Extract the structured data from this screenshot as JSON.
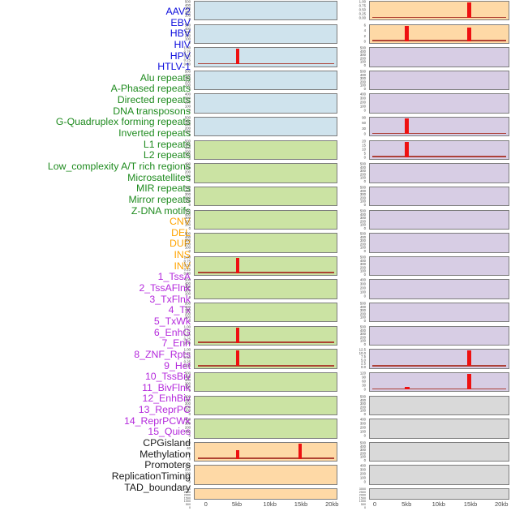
{
  "chart_data": {
    "type": "area",
    "title": "",
    "layout_note": "44 genomic feature tracks: 2 columns x 22 panels, shared x-axis 0-20kb, red spikes mark signal peaks",
    "x_axis": {
      "ticks": [
        "0",
        "5kb",
        "10kb",
        "15kb",
        "20kb"
      ],
      "range_kb": [
        0,
        20
      ]
    },
    "group_colors": {
      "virus": "#0d0ddd",
      "repeat": "#1f8b1f",
      "sv": "#ffa400",
      "chromatin": "#b429dc",
      "other": "#1a1a1a"
    },
    "panel_fill_colors": {
      "blue": "#cfe3ed",
      "green": "#cbe3a3",
      "orange": "#fed9a6",
      "purple": "#d7cde4",
      "gray": "#d9d9d9"
    },
    "spike_color": "#ee1111",
    "baseline_color": "#a93226",
    "row_labels": [
      {
        "text": "AAV2",
        "group": "virus"
      },
      {
        "text": "EBV",
        "group": "virus"
      },
      {
        "text": "HBV",
        "group": "virus"
      },
      {
        "text": "HIV",
        "group": "virus"
      },
      {
        "text": "HPV",
        "group": "virus"
      },
      {
        "text": "HTLV-1",
        "group": "virus"
      },
      {
        "text": "Alu repeats",
        "group": "repeat"
      },
      {
        "text": "A-Phased repeats",
        "group": "repeat"
      },
      {
        "text": "Directed repeats",
        "group": "repeat"
      },
      {
        "text": "DNA transposons",
        "group": "repeat"
      },
      {
        "text": "G-Quadruplex forming repeats",
        "group": "repeat"
      },
      {
        "text": "Inverted repeats",
        "group": "repeat"
      },
      {
        "text": "L1 repeats",
        "group": "repeat"
      },
      {
        "text": "L2 repeats",
        "group": "repeat"
      },
      {
        "text": "Low_complexity A/T rich regions",
        "group": "repeat"
      },
      {
        "text": "Microsatellites",
        "group": "repeat"
      },
      {
        "text": "MIR repeats",
        "group": "repeat"
      },
      {
        "text": "Mirror repeats",
        "group": "repeat"
      },
      {
        "text": "Z-DNA motifs",
        "group": "repeat"
      },
      {
        "text": "CNV",
        "group": "sv"
      },
      {
        "text": "DEL",
        "group": "sv"
      },
      {
        "text": "DUP",
        "group": "sv"
      },
      {
        "text": "INS",
        "group": "sv"
      },
      {
        "text": "INV",
        "group": "sv"
      },
      {
        "text": "1_TssA",
        "group": "chromatin"
      },
      {
        "text": "2_TssAFlnk",
        "group": "chromatin"
      },
      {
        "text": "3_TxFlnk",
        "group": "chromatin"
      },
      {
        "text": "4_Tx",
        "group": "chromatin"
      },
      {
        "text": "5_TxWk",
        "group": "chromatin"
      },
      {
        "text": "6_EnhG",
        "group": "chromatin"
      },
      {
        "text": "7_Enh",
        "group": "chromatin"
      },
      {
        "text": "8_ZNF_Rpts",
        "group": "chromatin"
      },
      {
        "text": "9_Het",
        "group": "chromatin"
      },
      {
        "text": "10_TssBiv",
        "group": "chromatin"
      },
      {
        "text": "11_BivFlnk",
        "group": "chromatin"
      },
      {
        "text": "12_EnhBiv",
        "group": "chromatin"
      },
      {
        "text": "13_ReprPC",
        "group": "chromatin"
      },
      {
        "text": "14_ReprPCWk",
        "group": "chromatin"
      },
      {
        "text": "15_Quies",
        "group": "chromatin"
      },
      {
        "text": "CPGisland",
        "group": "other"
      },
      {
        "text": "Methylation",
        "group": "other"
      },
      {
        "text": "Promoters",
        "group": "other"
      },
      {
        "text": "ReplicationTiming",
        "group": "other"
      },
      {
        "text": "TAD_boundary",
        "group": "other"
      }
    ],
    "left_panels": [
      {
        "fill": "blue",
        "yticks": [
          "500",
          "400",
          "300",
          "200",
          "100",
          "0"
        ],
        "spikes": [],
        "baseline": false
      },
      {
        "fill": "blue",
        "yticks": [
          "500",
          "400",
          "300",
          "200",
          "100",
          "0"
        ],
        "spikes": [],
        "baseline": false
      },
      {
        "fill": "blue",
        "yticks": [
          "1.00",
          "0.75",
          "0.50",
          "0.25",
          "0.00"
        ],
        "spikes": [
          {
            "kb": 5,
            "h": 1
          }
        ],
        "baseline": true
      },
      {
        "fill": "blue",
        "yticks": [
          "500",
          "400",
          "300",
          "200",
          "100",
          "0"
        ],
        "spikes": [],
        "baseline": false
      },
      {
        "fill": "blue",
        "yticks": [
          "400",
          "300",
          "200",
          "100",
          "0"
        ],
        "spikes": [],
        "baseline": false
      },
      {
        "fill": "blue",
        "yticks": [
          "500",
          "400",
          "300",
          "200",
          "100",
          "0"
        ],
        "spikes": [],
        "baseline": false
      },
      {
        "fill": "green",
        "yticks": [
          "500",
          "400",
          "300",
          "200",
          "100",
          "0"
        ],
        "spikes": [],
        "baseline": false
      },
      {
        "fill": "green",
        "yticks": [
          "400",
          "300",
          "200",
          "100",
          "0"
        ],
        "spikes": [],
        "baseline": false
      },
      {
        "fill": "green",
        "yticks": [
          "500",
          "400",
          "300",
          "200",
          "100",
          "0"
        ],
        "spikes": [],
        "baseline": false
      },
      {
        "fill": "green",
        "yticks": [
          "500",
          "400",
          "300",
          "200",
          "100",
          "0"
        ],
        "spikes": [],
        "baseline": false
      },
      {
        "fill": "green",
        "yticks": [
          "500",
          "400",
          "300",
          "200",
          "100",
          "0"
        ],
        "spikes": [],
        "baseline": false
      },
      {
        "fill": "green",
        "yticks": [
          "1.00",
          "0.75",
          "0.50",
          "0.25",
          "0.00"
        ],
        "spikes": [
          {
            "kb": 5,
            "h": 1
          }
        ],
        "baseline": true
      },
      {
        "fill": "green",
        "yticks": [
          "500",
          "400",
          "300",
          "200",
          "100",
          "0"
        ],
        "spikes": [],
        "baseline": false
      },
      {
        "fill": "green",
        "yticks": [
          "500",
          "400",
          "300",
          "200",
          "100",
          "0"
        ],
        "spikes": [],
        "baseline": false
      },
      {
        "fill": "green",
        "yticks": [
          "1.00",
          "0.75",
          "0.50",
          "0.25",
          "0.00"
        ],
        "spikes": [
          {
            "kb": 5,
            "h": 1
          }
        ],
        "baseline": true
      },
      {
        "fill": "green",
        "yticks": [
          "1.00",
          "0.75",
          "0.50",
          "0.25",
          "0.00"
        ],
        "spikes": [
          {
            "kb": 5,
            "h": 1
          }
        ],
        "baseline": true
      },
      {
        "fill": "green",
        "yticks": [
          "500",
          "400",
          "300",
          "200",
          "100",
          "0"
        ],
        "spikes": [],
        "baseline": false
      },
      {
        "fill": "green",
        "yticks": [
          "500",
          "400",
          "300",
          "200",
          "100",
          "0"
        ],
        "spikes": [],
        "baseline": false
      },
      {
        "fill": "green",
        "yticks": [
          "400",
          "300",
          "200",
          "100",
          "0"
        ],
        "spikes": [],
        "baseline": false
      },
      {
        "fill": "orange",
        "yticks": [
          "60",
          "40",
          "20",
          "0"
        ],
        "spikes": [
          {
            "kb": 5,
            "h": 0.55
          },
          {
            "kb": 15,
            "h": 1
          }
        ],
        "baseline": true
      },
      {
        "fill": "orange",
        "yticks": [
          "400",
          "300",
          "200",
          "100",
          "0"
        ],
        "spikes": [],
        "baseline": false
      },
      {
        "fill": "orange",
        "yticks": [
          "3000",
          "2500",
          "2000",
          "1500",
          "1000",
          "500",
          "0"
        ],
        "dense": true,
        "spikes": [],
        "baseline": false
      }
    ],
    "right_panels": [
      {
        "fill": "orange",
        "yticks": [
          "1.00",
          "0.75",
          "0.50",
          "0.25",
          "0.00"
        ],
        "spikes": [
          {
            "kb": 15,
            "h": 1
          }
        ],
        "baseline": true
      },
      {
        "fill": "orange",
        "yticks": [
          "6",
          "4",
          "2",
          "0"
        ],
        "spikes": [
          {
            "kb": 5,
            "h": 1
          },
          {
            "kb": 15,
            "h": 0.85
          }
        ],
        "baseline": true
      },
      {
        "fill": "purple",
        "yticks": [
          "500",
          "400",
          "300",
          "200",
          "100",
          "0"
        ],
        "spikes": [],
        "baseline": false
      },
      {
        "fill": "purple",
        "yticks": [
          "500",
          "400",
          "300",
          "200",
          "100",
          "0"
        ],
        "spikes": [],
        "baseline": false
      },
      {
        "fill": "purple",
        "yticks": [
          "400",
          "300",
          "200",
          "100",
          "0"
        ],
        "spikes": [],
        "baseline": false
      },
      {
        "fill": "purple",
        "yticks": [
          "90",
          "60",
          "30",
          "0"
        ],
        "spikes": [
          {
            "kb": 5,
            "h": 1
          }
        ],
        "baseline": true
      },
      {
        "fill": "purple",
        "yticks": [
          "20",
          "15",
          "10",
          "5",
          "0"
        ],
        "spikes": [
          {
            "kb": 5,
            "h": 1
          }
        ],
        "baseline": true
      },
      {
        "fill": "purple",
        "yticks": [
          "500",
          "400",
          "300",
          "200",
          "100",
          "0"
        ],
        "spikes": [],
        "baseline": false
      },
      {
        "fill": "purple",
        "yticks": [
          "500",
          "400",
          "300",
          "200",
          "100",
          "0"
        ],
        "spikes": [],
        "baseline": false
      },
      {
        "fill": "purple",
        "yticks": [
          "500",
          "400",
          "300",
          "200",
          "100",
          "0"
        ],
        "spikes": [],
        "baseline": false
      },
      {
        "fill": "purple",
        "yticks": [
          "500",
          "400",
          "300",
          "200",
          "100",
          "0"
        ],
        "spikes": [],
        "baseline": false
      },
      {
        "fill": "purple",
        "yticks": [
          "500",
          "400",
          "300",
          "200",
          "100",
          "0"
        ],
        "spikes": [],
        "baseline": false
      },
      {
        "fill": "purple",
        "yticks": [
          "400",
          "300",
          "200",
          "100",
          "0"
        ],
        "spikes": [],
        "baseline": false
      },
      {
        "fill": "purple",
        "yticks": [
          "500",
          "400",
          "300",
          "200",
          "100",
          "0"
        ],
        "spikes": [],
        "baseline": false
      },
      {
        "fill": "purple",
        "yticks": [
          "500",
          "400",
          "300",
          "200",
          "100",
          "0"
        ],
        "spikes": [],
        "baseline": false
      },
      {
        "fill": "purple",
        "yticks": [
          "12.5",
          "10.0",
          "7.5",
          "5.0",
          "2.5",
          "0.0"
        ],
        "spikes": [
          {
            "kb": 15,
            "h": 1
          }
        ],
        "baseline": true
      },
      {
        "fill": "purple",
        "yticks": [
          "120",
          "90",
          "60",
          "30",
          "0"
        ],
        "spikes": [
          {
            "kb": 5,
            "h": 0.07,
            "w": 6
          },
          {
            "kb": 15,
            "h": 1
          }
        ],
        "baseline": true
      },
      {
        "fill": "gray",
        "yticks": [
          "500",
          "400",
          "300",
          "200",
          "100",
          "0"
        ],
        "spikes": [],
        "baseline": false
      },
      {
        "fill": "gray",
        "yticks": [
          "400",
          "300",
          "200",
          "100",
          "0"
        ],
        "spikes": [],
        "baseline": false
      },
      {
        "fill": "gray",
        "yticks": [
          "500",
          "400",
          "300",
          "200",
          "100",
          "0"
        ],
        "spikes": [],
        "baseline": false
      },
      {
        "fill": "gray",
        "yticks": [
          "400",
          "300",
          "200",
          "100",
          "0"
        ],
        "spikes": [],
        "baseline": false
      },
      {
        "fill": "gray",
        "yticks": [
          "3000",
          "2500",
          "2000",
          "1500",
          "1000",
          "500",
          "0"
        ],
        "dense": true,
        "spikes": [],
        "baseline": false
      }
    ]
  }
}
